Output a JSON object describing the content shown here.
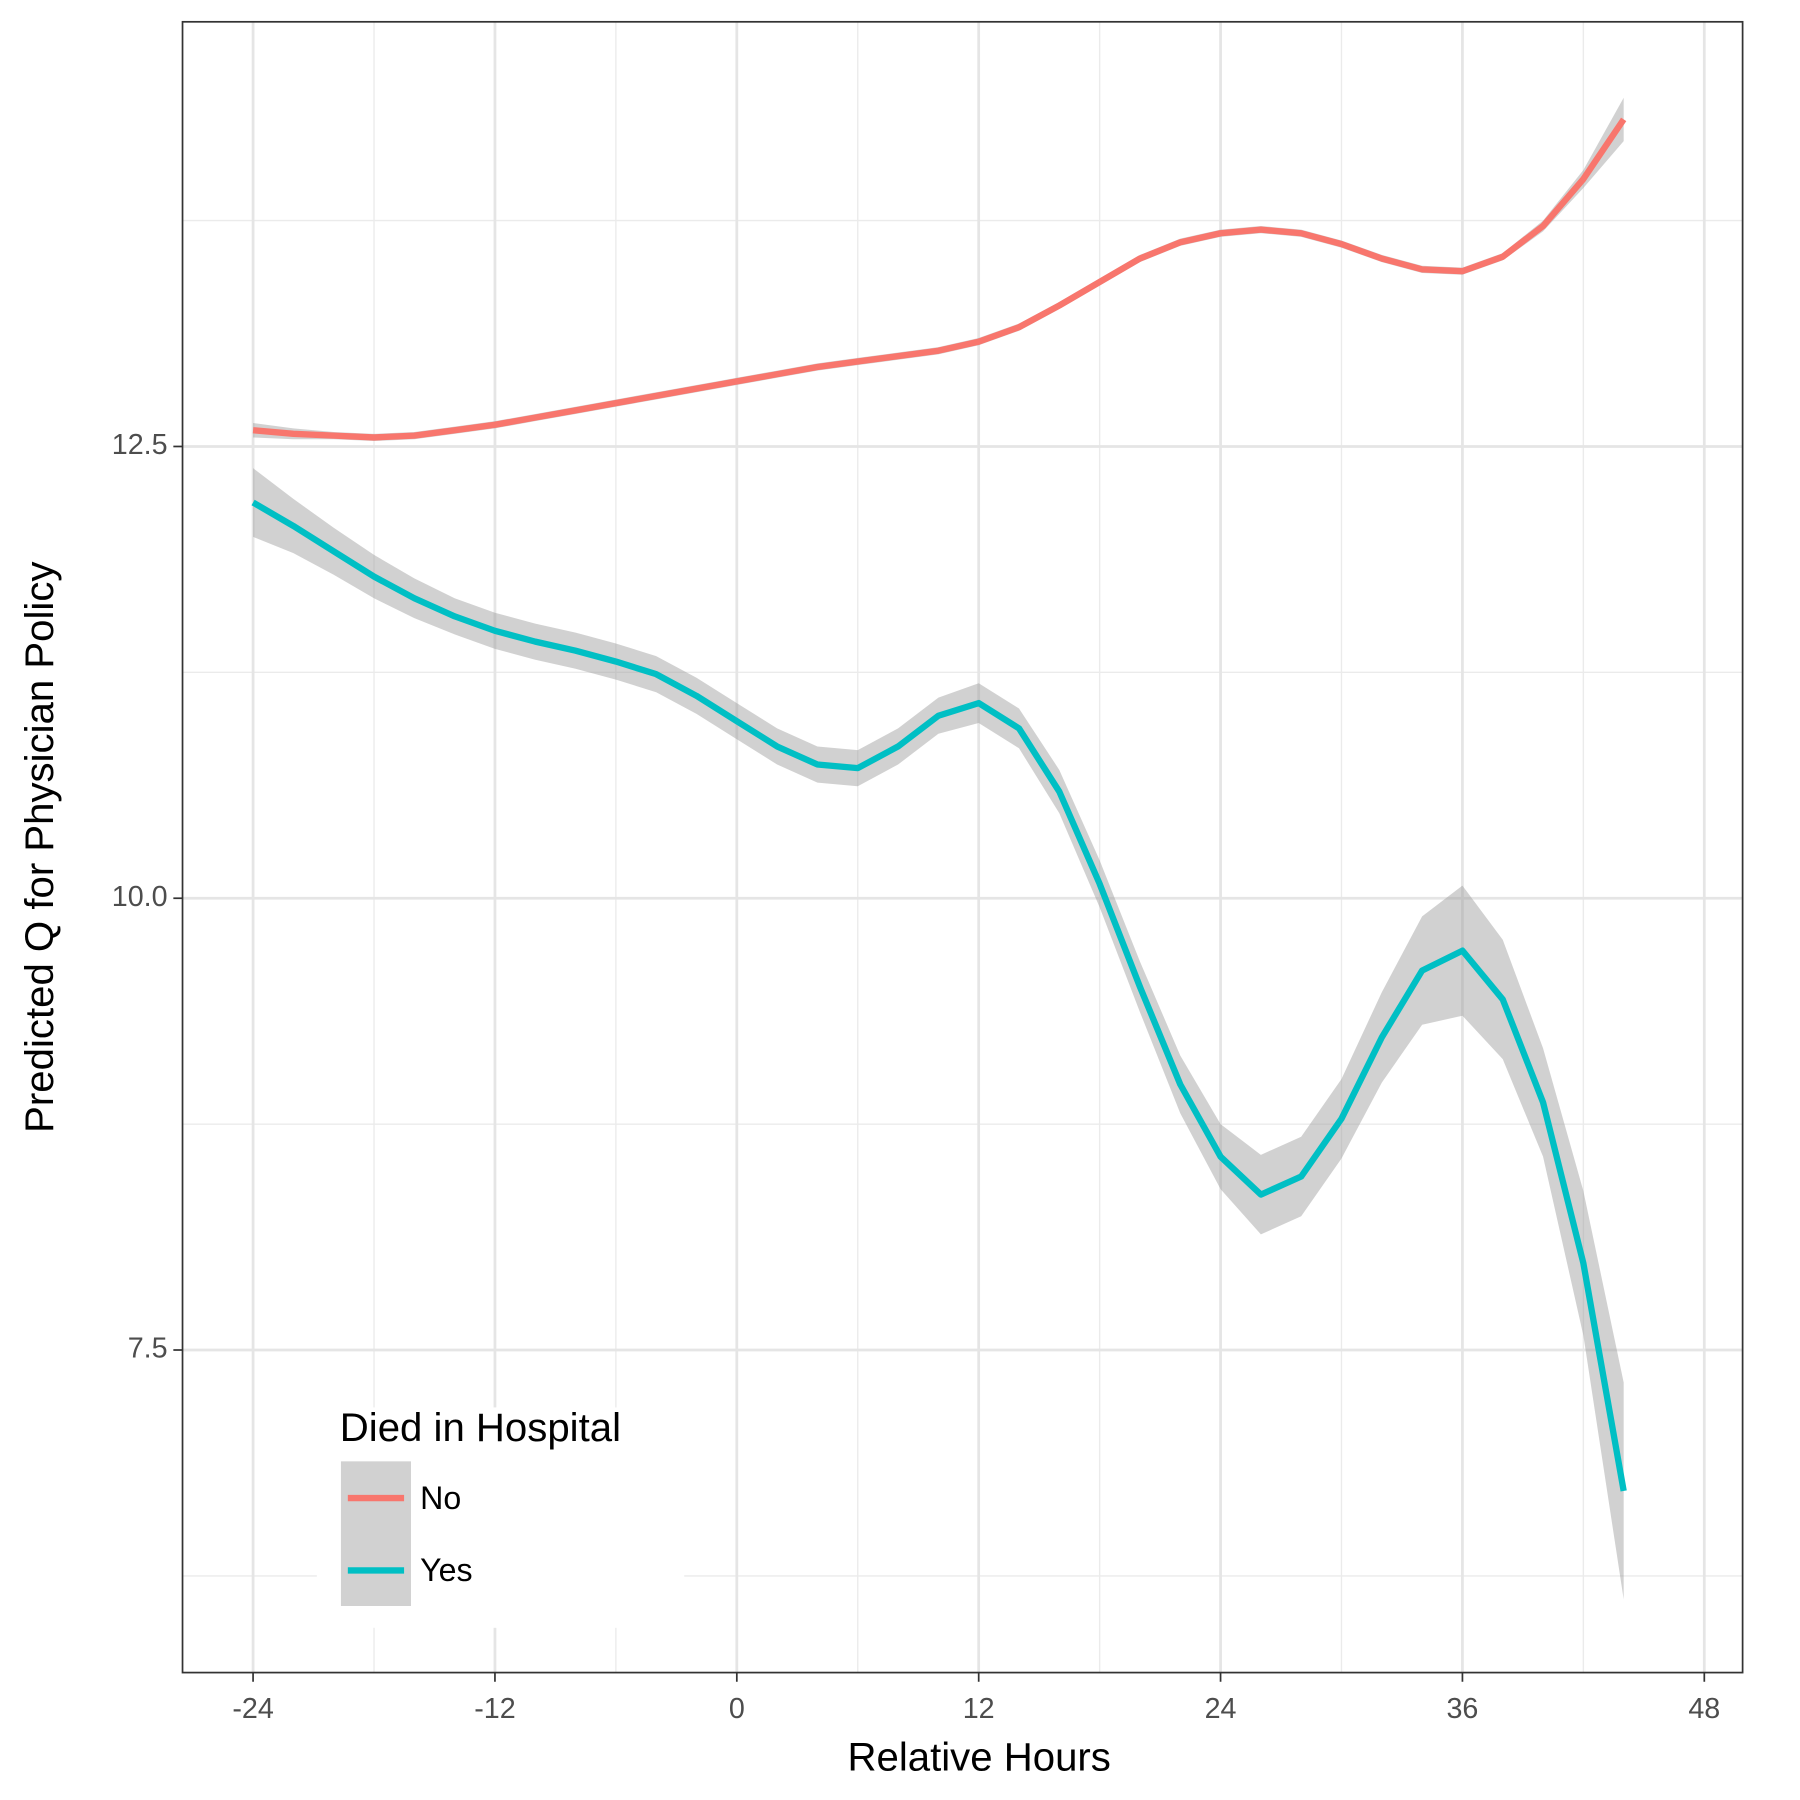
{
  "chart_data": {
    "type": "line",
    "x_label": "Relative Hours",
    "y_label": "Predicted Q for Physician Policy",
    "legend_title": "Died in Hospital",
    "legend_position": "bottom-left",
    "grid": true,
    "xlim": [
      -27.5,
      49.9
    ],
    "ylim": [
      5.715,
      14.85
    ],
    "xticks": [
      -24,
      -12,
      0,
      12,
      24,
      36,
      48
    ],
    "yticks": [
      7.5,
      {
        "value": 10.0,
        "label": "10.0"
      },
      12.5
    ],
    "band_color": "#999999",
    "x": [
      -24,
      -22,
      -20,
      -18,
      -16,
      -14,
      -12,
      -10,
      -8,
      -6,
      -4,
      -2,
      0,
      2,
      4,
      6,
      8,
      10,
      12,
      14,
      16,
      18,
      20,
      22,
      24,
      26,
      28,
      30,
      32,
      34,
      36,
      38,
      40,
      42,
      44
    ],
    "series": [
      {
        "name": "No",
        "color": "#F8766D",
        "values": [
          12.59,
          12.57,
          12.56,
          12.55,
          12.56,
          12.59,
          12.62,
          12.66,
          12.7,
          12.74,
          12.78,
          12.82,
          12.86,
          12.9,
          12.94,
          12.97,
          13.0,
          13.03,
          13.08,
          13.16,
          13.28,
          13.41,
          13.54,
          13.63,
          13.68,
          13.7,
          13.68,
          13.62,
          13.54,
          13.48,
          13.47,
          13.55,
          13.72,
          13.98,
          14.31
        ],
        "lower": [
          12.55,
          12.54,
          12.54,
          12.53,
          12.54,
          12.57,
          12.6,
          12.64,
          12.68,
          12.72,
          12.76,
          12.8,
          12.84,
          12.88,
          12.92,
          12.95,
          12.98,
          13.01,
          13.06,
          13.14,
          13.26,
          13.39,
          13.52,
          13.61,
          13.66,
          13.68,
          13.66,
          13.6,
          13.52,
          13.46,
          13.45,
          13.53,
          13.69,
          13.93,
          14.19
        ],
        "upper": [
          12.63,
          12.6,
          12.58,
          12.57,
          12.58,
          12.61,
          12.64,
          12.68,
          12.72,
          12.76,
          12.8,
          12.84,
          12.88,
          12.92,
          12.96,
          12.99,
          13.02,
          13.05,
          13.1,
          13.18,
          13.3,
          13.43,
          13.56,
          13.65,
          13.7,
          13.72,
          13.7,
          13.64,
          13.56,
          13.5,
          13.49,
          13.57,
          13.75,
          14.03,
          14.43
        ]
      },
      {
        "name": "Yes",
        "color": "#00BFC4",
        "values": [
          12.19,
          12.06,
          11.92,
          11.78,
          11.66,
          11.56,
          11.48,
          11.42,
          11.37,
          11.31,
          11.24,
          11.12,
          10.98,
          10.84,
          10.74,
          10.72,
          10.84,
          11.01,
          11.08,
          10.94,
          10.59,
          10.08,
          9.51,
          8.97,
          8.57,
          8.36,
          8.46,
          8.78,
          9.23,
          9.6,
          9.71,
          9.44,
          8.87,
          7.98,
          6.72
        ],
        "lower": [
          12.0,
          11.91,
          11.79,
          11.66,
          11.55,
          11.46,
          11.38,
          11.32,
          11.27,
          11.21,
          11.14,
          11.02,
          10.88,
          10.74,
          10.64,
          10.62,
          10.74,
          10.91,
          10.97,
          10.83,
          10.47,
          9.95,
          9.37,
          8.81,
          8.39,
          8.14,
          8.24,
          8.56,
          8.98,
          9.3,
          9.35,
          9.11,
          8.57,
          7.58,
          6.12
        ],
        "upper": [
          12.38,
          12.21,
          12.05,
          11.9,
          11.77,
          11.66,
          11.58,
          11.52,
          11.47,
          11.41,
          11.34,
          11.22,
          11.08,
          10.94,
          10.84,
          10.82,
          10.94,
          11.11,
          11.19,
          11.05,
          10.71,
          10.21,
          9.65,
          9.13,
          8.75,
          8.58,
          8.68,
          9.0,
          9.48,
          9.9,
          10.07,
          9.77,
          9.17,
          8.38,
          7.32
        ]
      }
    ]
  }
}
